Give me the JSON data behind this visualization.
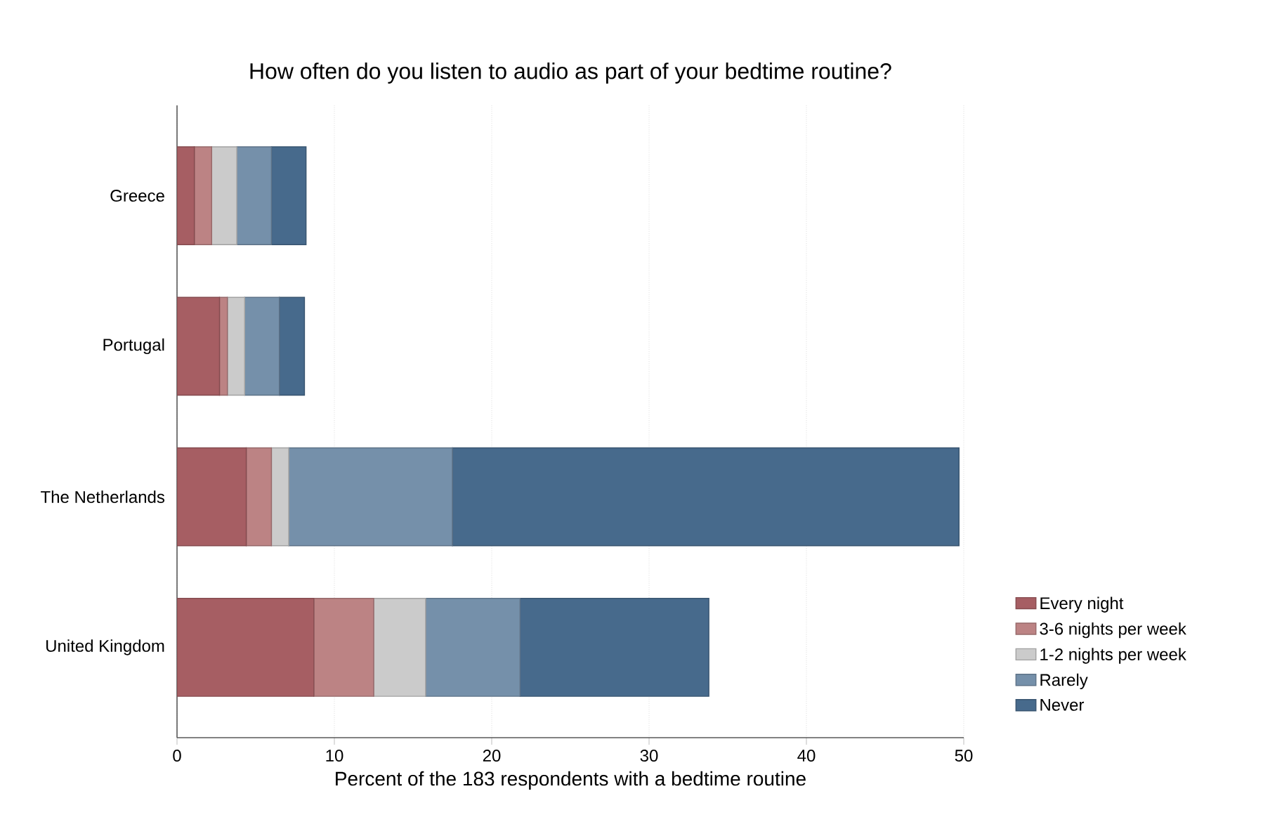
{
  "chart_data": {
    "type": "bar",
    "orientation": "horizontal",
    "stacked": true,
    "title": "How often do you listen to audio as part of your bedtime routine?",
    "xlabel": "Percent of the 183 respondents with a bedtime routine",
    "categories": [
      "Greece",
      "Portugal",
      "The Netherlands",
      "United Kingdom"
    ],
    "series": [
      {
        "name": "Every night",
        "color": "#a65e63",
        "values": [
          1.1,
          2.7,
          4.4,
          8.7
        ]
      },
      {
        "name": "3-6 nights per week",
        "color": "#bc8384",
        "values": [
          1.1,
          0.5,
          1.6,
          3.8
        ]
      },
      {
        "name": "1-2 nights per week",
        "color": "#cbcbcb",
        "values": [
          1.6,
          1.1,
          1.1,
          3.3
        ]
      },
      {
        "name": "Rarely",
        "color": "#7590aa",
        "values": [
          2.2,
          2.2,
          10.4,
          6.0
        ]
      },
      {
        "name": "Never",
        "color": "#476a8c",
        "values": [
          2.2,
          1.6,
          32.2,
          12.0
        ]
      }
    ],
    "xlim": [
      0,
      50
    ],
    "xticks": [
      0,
      10,
      20,
      30,
      40,
      50
    ],
    "grid": "x",
    "legend": "right"
  }
}
